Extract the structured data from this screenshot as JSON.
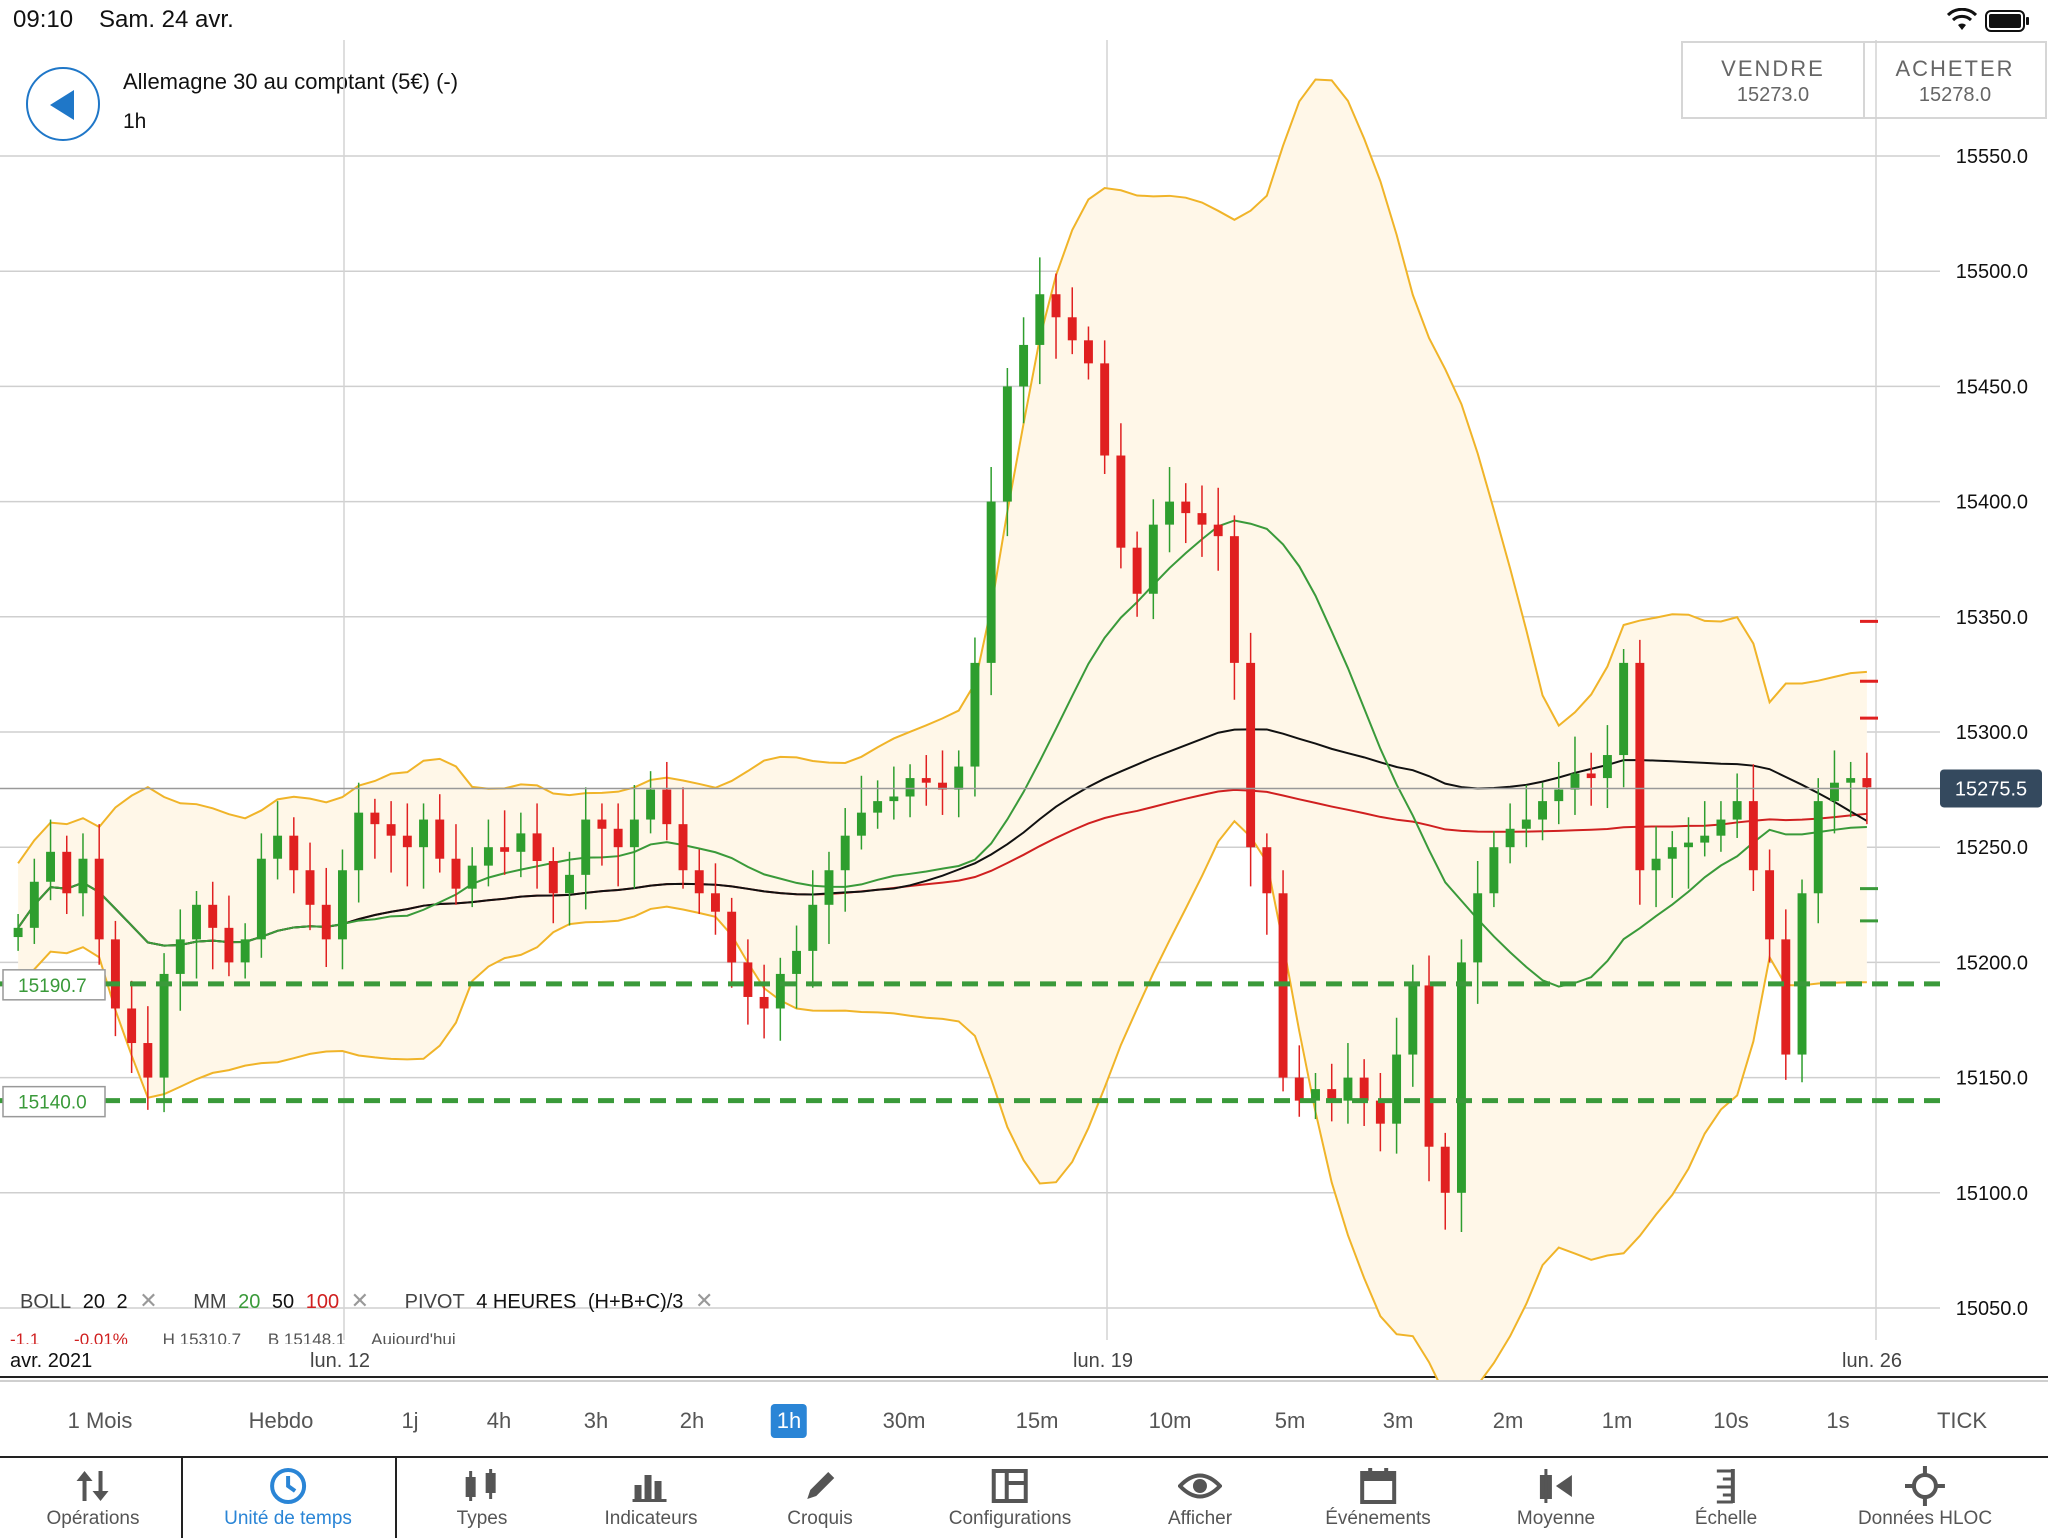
{
  "status_bar": {
    "time": "09:10",
    "date": "Sam. 24 avr."
  },
  "instrument": {
    "name": "Allemagne 30 au comptant (5€) (-)",
    "timeframe": "1h"
  },
  "trade": {
    "sell_label": "VENDRE",
    "sell_price": "15273.0",
    "buy_label": "ACHETER",
    "buy_price": "15278.0"
  },
  "chart_data": {
    "type": "candlestick",
    "title": "",
    "y_ticks": [
      "15550.0",
      "15500.0",
      "15450.0",
      "15400.0",
      "15350.0",
      "15300.0",
      "15250.0",
      "15200.0",
      "15150.0",
      "15100.0",
      "15050.0"
    ],
    "ylim": [
      15030,
      15580
    ],
    "x_labels": [
      "avr. 2021",
      "lun. 12",
      "lun. 19",
      "lun. 26"
    ],
    "current_price": "15275.5",
    "pivot_levels": [
      {
        "label": "15190.7",
        "value": 15190.7
      },
      {
        "label": "15140.0",
        "value": 15140.0
      }
    ],
    "close_series": [
      15215,
      15235,
      15248,
      15230,
      15245,
      15210,
      15180,
      15165,
      15150,
      15195,
      15210,
      15225,
      15215,
      15200,
      15210,
      15245,
      15255,
      15240,
      15225,
      15210,
      15240,
      15265,
      15260,
      15255,
      15250,
      15262,
      15245,
      15232,
      15242,
      15250,
      15248,
      15256,
      15244,
      15230,
      15238,
      15262,
      15258,
      15250,
      15262,
      15275,
      15260,
      15240,
      15230,
      15222,
      15200,
      15185,
      15180,
      15195,
      15205,
      15225,
      15240,
      15255,
      15265,
      15270,
      15272,
      15280,
      15278,
      15275,
      15285,
      15330,
      15400,
      15450,
      15468,
      15490,
      15480,
      15470,
      15460,
      15420,
      15380,
      15360,
      15390,
      15400,
      15395,
      15390,
      15385,
      15330,
      15250,
      15230,
      15150,
      15140,
      15145,
      15140,
      15150,
      15140,
      15130,
      15160,
      15190,
      15120,
      15100,
      15200,
      15230,
      15250,
      15258,
      15262,
      15270,
      15275,
      15282,
      15280,
      15290,
      15330,
      15240,
      15245,
      15250,
      15252,
      15255,
      15262,
      15270,
      15240,
      15210,
      15160,
      15230,
      15270,
      15278,
      15280,
      15276
    ],
    "indicators": {
      "boll": {
        "name": "BOLL",
        "period": "20",
        "dev": "2",
        "color": "#f0b429"
      },
      "ma": {
        "name": "MM",
        "periods": [
          "20",
          "50",
          "100"
        ],
        "colors": [
          "#3a9a3a",
          "#111111",
          "#d02020"
        ]
      },
      "pivot": {
        "name": "PIVOT",
        "period": "4 HEURES",
        "formula": "(H+B+C)/3"
      }
    },
    "info_line": [
      "-1.1",
      "-0.01%",
      "H 15310.7",
      "B 15148.1",
      "Aujourd'hui"
    ],
    "colors": {
      "up": "#2e9e2e",
      "down": "#e02020",
      "band_fill": "#fff7e8",
      "pivot": "#3a9a3a"
    }
  },
  "timeframes": [
    "1 Mois",
    "Hebdo",
    "1j",
    "4h",
    "3h",
    "2h",
    "1h",
    "30m",
    "15m",
    "10m",
    "5m",
    "3m",
    "2m",
    "1m",
    "10s",
    "1s",
    "TICK"
  ],
  "active_timeframe": "1h",
  "toolbar": [
    {
      "label": "Opérations",
      "icon": "arrows-updown-icon"
    },
    {
      "label": "Unité de temps",
      "icon": "clock-icon"
    },
    {
      "label": "Types",
      "icon": "candles-icon"
    },
    {
      "label": "Indicateurs",
      "icon": "bars-icon"
    },
    {
      "label": "Croquis",
      "icon": "pencil-icon"
    },
    {
      "label": "Configurations",
      "icon": "layout-icon"
    },
    {
      "label": "Afficher",
      "icon": "eye-icon"
    },
    {
      "label": "Événements",
      "icon": "calendar-icon"
    },
    {
      "label": "Moyenne",
      "icon": "average-icon"
    },
    {
      "label": "Échelle",
      "icon": "scale-icon"
    },
    {
      "label": "Données HLOC",
      "icon": "crosshair-icon"
    }
  ]
}
